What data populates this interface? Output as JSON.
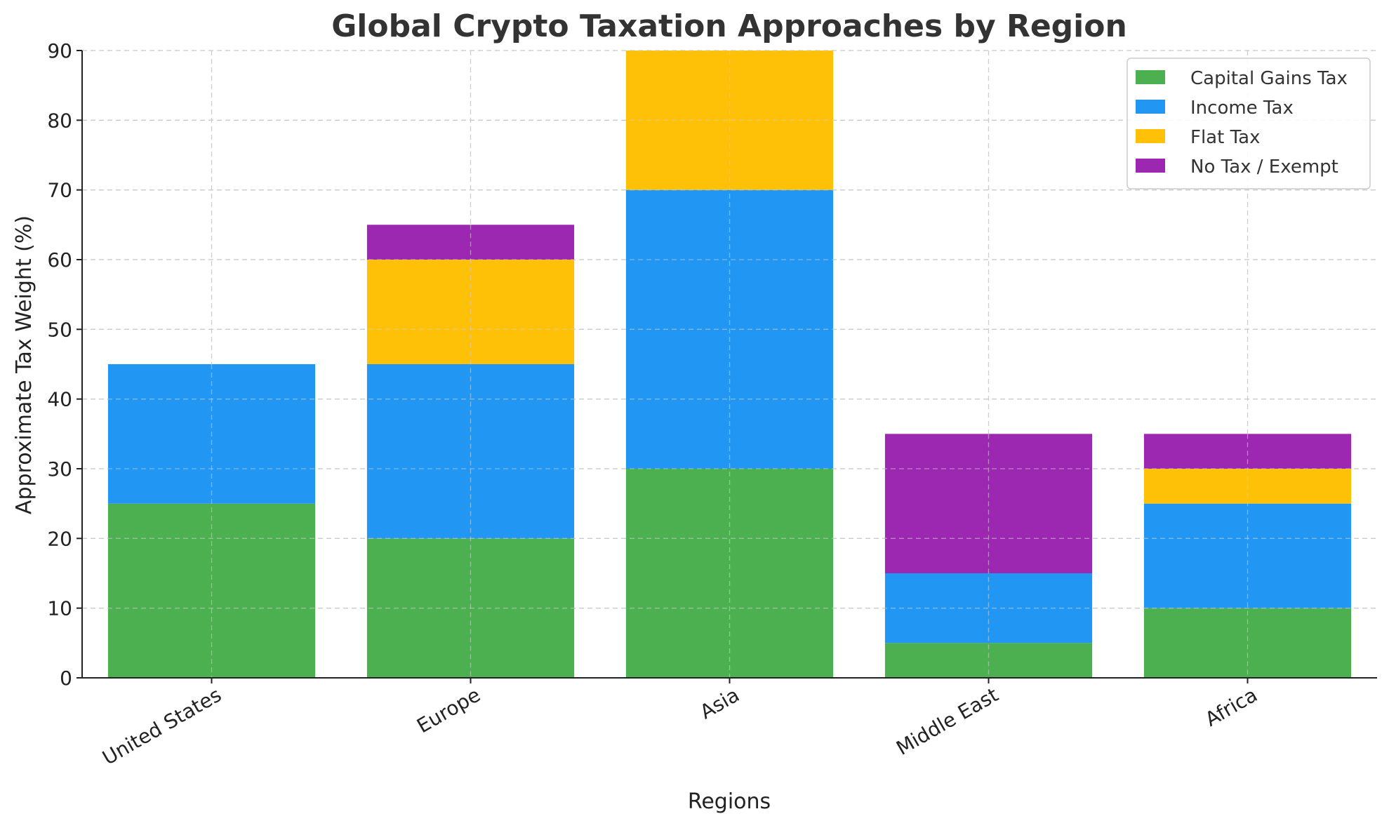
{
  "chart_data": {
    "type": "bar",
    "stacked": true,
    "title": "Global Crypto Taxation Approaches by Region",
    "xlabel": "Regions",
    "ylabel": "Approximate Tax Weight (%)",
    "ylim": [
      0,
      90
    ],
    "yticks": [
      0,
      10,
      20,
      30,
      40,
      50,
      60,
      70,
      80,
      90
    ],
    "grid": true,
    "legend_position": "top-right",
    "categories": [
      "United States",
      "Europe",
      "Asia",
      "Middle East",
      "Africa"
    ],
    "series": [
      {
        "name": "Capital Gains Tax",
        "color": "#4caf50",
        "values": [
          25,
          20,
          30,
          5,
          10
        ]
      },
      {
        "name": "Income Tax",
        "color": "#2196f3",
        "values": [
          20,
          25,
          40,
          10,
          15
        ]
      },
      {
        "name": "Flat Tax",
        "color": "#ffc107",
        "values": [
          0,
          15,
          20,
          0,
          5
        ]
      },
      {
        "name": "No Tax / Exempt",
        "color": "#9c27b0",
        "values": [
          0,
          5,
          0,
          20,
          5
        ]
      }
    ]
  }
}
